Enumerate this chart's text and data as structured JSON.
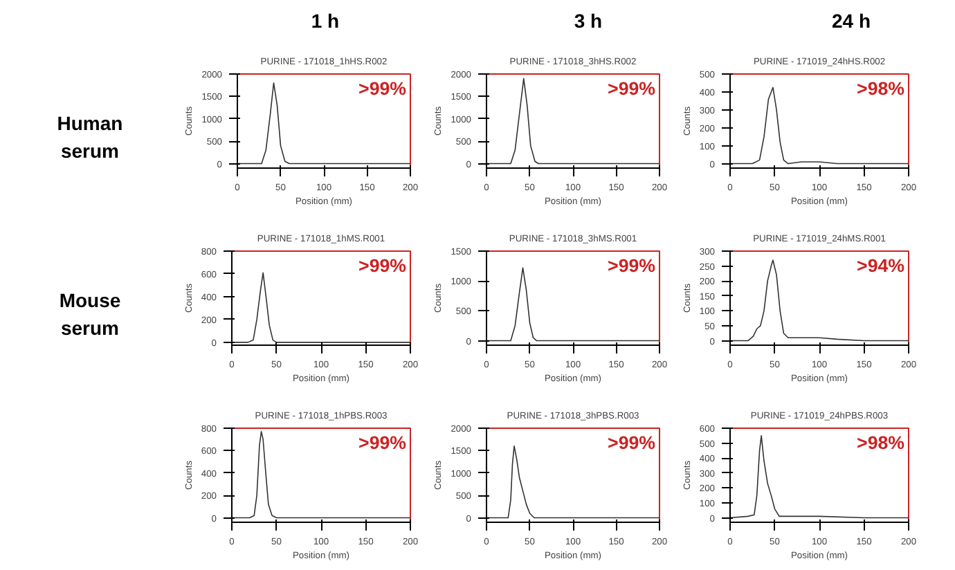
{
  "chart_data": [
    {
      "type": "line",
      "title": "1 h",
      "subtitle": "PURINE - 171018_1hHS.R002",
      "xlabel": "Position (mm)",
      "ylabel": "Counts",
      "annotations": [
        ">99%",
        "Human serum"
      ],
      "xlim": [
        0,
        200
      ],
      "xticks": [
        0,
        50,
        100,
        150,
        200
      ],
      "ylim": [
        -100,
        2000
      ],
      "yticks": [
        0,
        500,
        1000,
        1500,
        2000
      ],
      "grid": false,
      "series": [
        {
          "color": "#333333",
          "x": [
            0,
            20,
            28,
            33,
            38,
            42,
            46,
            50,
            55,
            60,
            80,
            100,
            150,
            200
          ],
          "values": [
            0,
            0,
            0,
            300,
            1100,
            1800,
            1300,
            400,
            50,
            0,
            0,
            0,
            0,
            0
          ]
        }
      ]
    },
    {
      "type": "line",
      "title": "3 h",
      "subtitle": "PURINE - 171018_3hHS.R002",
      "xlabel": "Position (mm)",
      "ylabel": "Counts",
      "annotations": [
        ">99%"
      ],
      "xlim": [
        0,
        200
      ],
      "xticks": [
        0,
        50,
        100,
        150,
        200
      ],
      "ylim": [
        -100,
        2000
      ],
      "yticks": [
        0,
        500,
        1000,
        1500,
        2000
      ],
      "grid": false,
      "series": [
        {
          "color": "#333333",
          "x": [
            0,
            20,
            28,
            33,
            38,
            43,
            47,
            51,
            56,
            60,
            80,
            100,
            150,
            200
          ],
          "values": [
            0,
            0,
            0,
            300,
            1100,
            1900,
            1300,
            400,
            50,
            0,
            0,
            0,
            0,
            0
          ]
        }
      ]
    },
    {
      "type": "line",
      "title": "24 h",
      "subtitle": "PURINE - 171019_24hHS.R002",
      "xlabel": "Position (mm)",
      "ylabel": "Counts",
      "annotations": [
        ">98%"
      ],
      "xlim": [
        0,
        200
      ],
      "xticks": [
        0,
        50,
        100,
        150,
        200
      ],
      "ylim": [
        -25,
        500
      ],
      "yticks": [
        0,
        100,
        200,
        300,
        400,
        500
      ],
      "grid": false,
      "series": [
        {
          "color": "#333333",
          "x": [
            0,
            25,
            33,
            38,
            43,
            48,
            52,
            56,
            60,
            65,
            80,
            90,
            100,
            120,
            150,
            200
          ],
          "values": [
            0,
            0,
            20,
            150,
            360,
            425,
            300,
            120,
            20,
            0,
            10,
            10,
            10,
            0,
            0,
            0
          ]
        }
      ]
    },
    {
      "type": "line",
      "subtitle": "PURINE - 171018_1hMS.R001",
      "xlabel": "Position (mm)",
      "ylabel": "Counts",
      "annotations": [
        ">99%",
        "Mouse serum"
      ],
      "xlim": [
        0,
        200
      ],
      "xticks": [
        0,
        50,
        100,
        150,
        200
      ],
      "ylim": [
        -25,
        800
      ],
      "yticks": [
        0,
        200,
        400,
        600,
        800
      ],
      "grid": false,
      "series": [
        {
          "color": "#333333",
          "x": [
            0,
            18,
            24,
            28,
            32,
            35,
            38,
            42,
            46,
            50,
            80,
            120,
            160,
            200
          ],
          "values": [
            0,
            0,
            20,
            200,
            450,
            610,
            420,
            150,
            20,
            0,
            0,
            0,
            0,
            0
          ]
        }
      ]
    },
    {
      "type": "line",
      "subtitle": "PURINE - 171018_3hMS.R001",
      "xlabel": "Position (mm)",
      "ylabel": "Counts",
      "annotations": [
        ">99%"
      ],
      "xlim": [
        0,
        200
      ],
      "xticks": [
        0,
        50,
        100,
        150,
        200
      ],
      "ylim": [
        -75,
        1500
      ],
      "yticks": [
        0,
        500,
        1000,
        1500
      ],
      "grid": false,
      "series": [
        {
          "color": "#333333",
          "x": [
            0,
            22,
            28,
            33,
            38,
            42,
            46,
            50,
            54,
            58,
            80,
            120,
            160,
            200
          ],
          "values": [
            0,
            0,
            0,
            250,
            800,
            1220,
            850,
            300,
            50,
            0,
            0,
            0,
            0,
            0
          ]
        }
      ]
    },
    {
      "type": "line",
      "subtitle": "PURINE - 171019_24hMS.R001",
      "xlabel": "Position (mm)",
      "ylabel": "Counts",
      "annotations": [
        ">94%"
      ],
      "xlim": [
        0,
        200
      ],
      "xticks": [
        0,
        50,
        100,
        150,
        200
      ],
      "ylim": [
        -15,
        300
      ],
      "yticks": [
        0,
        50,
        100,
        150,
        200,
        250,
        300
      ],
      "grid": false,
      "series": [
        {
          "color": "#333333",
          "x": [
            0,
            20,
            26,
            30,
            34,
            38,
            42,
            46,
            48,
            52,
            56,
            60,
            65,
            80,
            100,
            120,
            150,
            200
          ],
          "values": [
            0,
            0,
            15,
            40,
            50,
            100,
            200,
            250,
            270,
            220,
            100,
            25,
            10,
            10,
            10,
            5,
            0,
            0
          ]
        }
      ]
    },
    {
      "type": "line",
      "subtitle": "PURINE - 171018_1hPBS.R003",
      "xlabel": "Position (mm)",
      "ylabel": "Counts",
      "annotations": [
        ">99%"
      ],
      "xlim": [
        0,
        200
      ],
      "xticks": [
        0,
        50,
        100,
        150,
        200
      ],
      "ylim": [
        -40,
        800
      ],
      "yticks": [
        0,
        200,
        400,
        600,
        800
      ],
      "grid": false,
      "series": [
        {
          "color": "#333333",
          "x": [
            0,
            20,
            25,
            28,
            31,
            33,
            35,
            38,
            41,
            45,
            50,
            80,
            120,
            160,
            200
          ],
          "values": [
            0,
            0,
            20,
            200,
            650,
            770,
            700,
            400,
            120,
            20,
            0,
            0,
            0,
            0,
            0
          ]
        }
      ]
    },
    {
      "type": "line",
      "subtitle": "PURINE - 171018_3hPBS.R003",
      "xlabel": "Position (mm)",
      "ylabel": "Counts",
      "annotations": [
        ">99%"
      ],
      "xlim": [
        0,
        200
      ],
      "xticks": [
        0,
        50,
        100,
        150,
        200
      ],
      "ylim": [
        -100,
        2000
      ],
      "yticks": [
        0,
        500,
        1000,
        1500,
        2000
      ],
      "grid": false,
      "series": [
        {
          "color": "#333333",
          "x": [
            0,
            20,
            25,
            28,
            30,
            32,
            35,
            38,
            42,
            46,
            50,
            55,
            80,
            120,
            160,
            200
          ],
          "values": [
            0,
            0,
            0,
            400,
            1200,
            1600,
            1300,
            900,
            600,
            300,
            100,
            0,
            0,
            0,
            0,
            0
          ]
        }
      ]
    },
    {
      "type": "line",
      "subtitle": "PURINE - 171019_24hPBS.R003",
      "xlabel": "Position (mm)",
      "ylabel": "Counts",
      "annotations": [
        ">98%"
      ],
      "xlim": [
        0,
        200
      ],
      "xticks": [
        0,
        50,
        100,
        150,
        200
      ],
      "ylim": [
        -30,
        600
      ],
      "yticks": [
        0,
        100,
        200,
        300,
        400,
        500,
        600
      ],
      "grid": false,
      "series": [
        {
          "color": "#333333",
          "x": [
            0,
            20,
            27,
            30,
            33,
            35,
            38,
            42,
            46,
            50,
            55,
            80,
            100,
            150,
            200
          ],
          "values": [
            0,
            10,
            20,
            150,
            450,
            550,
            380,
            230,
            150,
            60,
            10,
            10,
            10,
            0,
            0
          ]
        }
      ]
    }
  ]
}
